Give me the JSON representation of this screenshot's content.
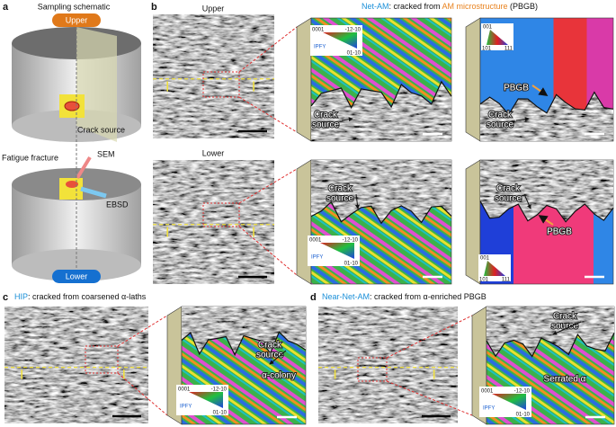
{
  "panel_a": {
    "label": "a",
    "title": "Sampling schematic",
    "upper": "Upper",
    "crack_source": "Crack source",
    "fatigue_fracture": "Fatigue fracture",
    "sem": "SEM",
    "ebsd": "EBSD",
    "lower": "Lower"
  },
  "panel_b": {
    "label": "b",
    "title": {
      "sample": "Net-AM",
      "text1": ": cracked from ",
      "feature": "AM microstructure",
      "text2": " (PBGB)"
    },
    "upper": "Upper",
    "lower": "Lower",
    "crack_labels": [
      [
        "Crack",
        "source"
      ],
      [
        "Crack",
        "source"
      ],
      [
        "Crack",
        "source"
      ],
      [
        "Crack",
        "source"
      ]
    ],
    "pbgb": [
      "PBGB",
      "PBGB"
    ]
  },
  "panel_c": {
    "label": "c",
    "title": {
      "sample": "HIP",
      "text": ": cracked from coarsened α-laths"
    },
    "crack": [
      "Crack",
      "source"
    ],
    "colony": "α-colony"
  },
  "panel_d": {
    "label": "d",
    "title": {
      "sample": "Near-Net-AM",
      "text": ": cracked from α-enriched PBGB"
    },
    "crack": [
      "Crack",
      "source"
    ],
    "serrated": "Serrated α"
  },
  "ipf_hex": [
    {
      "c": "0001",
      "a": "-12-10",
      "b": "01-10",
      "name": "IPFY"
    },
    {
      "c": "0001",
      "a": "-12-10",
      "b": "01-10",
      "name": "IPFY"
    },
    {
      "c": "0001",
      "a": "-12-10",
      "b": "01-10",
      "name": "IPFY"
    },
    {
      "c": "0001",
      "a": "-12-10",
      "b": "01-10",
      "name": "IPFY"
    }
  ],
  "ipf_cubic": [
    {
      "top": "001",
      "left": "101",
      "right": "111"
    },
    {
      "top": "001",
      "left": "101",
      "right": "111"
    }
  ]
}
